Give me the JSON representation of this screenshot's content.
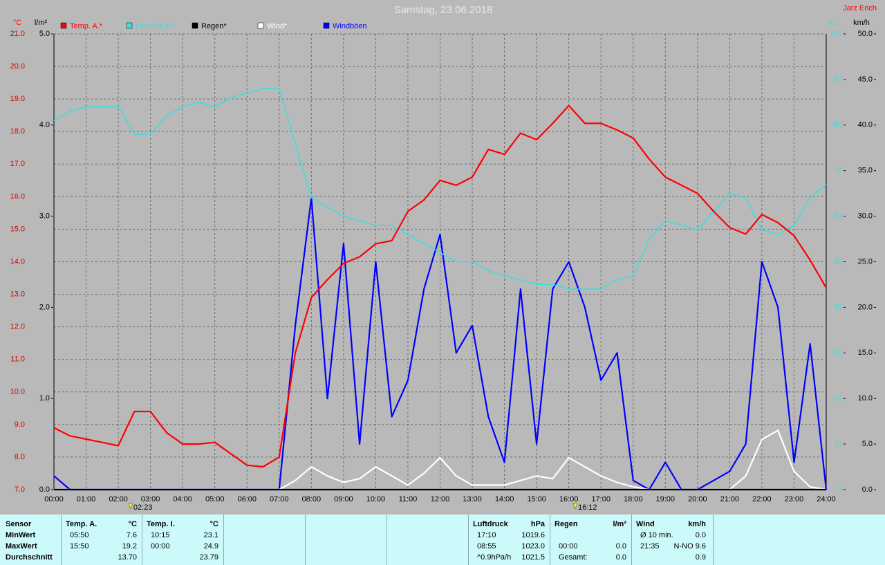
{
  "chart_data": {
    "type": "line",
    "title": "Samstag, 23.06.2018",
    "author": "Jarz Erich",
    "axis_units": {
      "y": "°C",
      "y2": "l/m²",
      "y3": "%",
      "y4": "km/h"
    },
    "x": [
      0,
      0.5,
      1,
      1.5,
      2,
      2.5,
      3,
      3.5,
      4,
      4.5,
      5,
      5.5,
      6,
      6.5,
      7,
      7.5,
      8,
      8.5,
      9,
      9.5,
      10,
      10.5,
      11,
      11.5,
      12,
      12.5,
      13,
      13.5,
      14,
      14.5,
      15,
      15.5,
      16,
      16.5,
      17,
      17.5,
      18,
      18.5,
      19,
      19.5,
      20,
      20.5,
      21,
      21.5,
      22,
      22.5,
      23,
      23.5,
      24
    ],
    "xlim": [
      0,
      24
    ],
    "xticks": [
      {
        "value": 0,
        "label": "00:00"
      },
      {
        "value": 1,
        "label": "01:00"
      },
      {
        "value": 2,
        "label": "02:00"
      },
      {
        "value": 3,
        "label": "03:00"
      },
      {
        "value": 4,
        "label": "04:00"
      },
      {
        "value": 5,
        "label": "05:00"
      },
      {
        "value": 6,
        "label": "06:00"
      },
      {
        "value": 7,
        "label": "07:00"
      },
      {
        "value": 8,
        "label": "08:00"
      },
      {
        "value": 9,
        "label": "09:00"
      },
      {
        "value": 10,
        "label": "10:00"
      },
      {
        "value": 11,
        "label": "11:00"
      },
      {
        "value": 12,
        "label": "12:00"
      },
      {
        "value": 13,
        "label": "13:00"
      },
      {
        "value": 14,
        "label": "14:00"
      },
      {
        "value": 15,
        "label": "15:00"
      },
      {
        "value": 16,
        "label": "16:00"
      },
      {
        "value": 17,
        "label": "17:00"
      },
      {
        "value": 18,
        "label": "18:00"
      },
      {
        "value": 19,
        "label": "19:00"
      },
      {
        "value": 20,
        "label": "20:00"
      },
      {
        "value": 21,
        "label": "21:00"
      },
      {
        "value": 22,
        "label": "22:00"
      },
      {
        "value": 23,
        "label": "23:00"
      },
      {
        "value": 24,
        "label": "24:00"
      }
    ],
    "ylim": [
      7,
      21
    ],
    "yticks": [
      {
        "value": 7,
        "label": "7.0"
      },
      {
        "value": 8,
        "label": "8.0"
      },
      {
        "value": 9,
        "label": "9.0"
      },
      {
        "value": 10,
        "label": "10.0"
      },
      {
        "value": 11,
        "label": "11.0"
      },
      {
        "value": 12,
        "label": "12.0"
      },
      {
        "value": 13,
        "label": "13.0"
      },
      {
        "value": 14,
        "label": "14.0"
      },
      {
        "value": 15,
        "label": "15.0"
      },
      {
        "value": 16,
        "label": "16.0"
      },
      {
        "value": 17,
        "label": "17.0"
      },
      {
        "value": 18,
        "label": "18.0"
      },
      {
        "value": 19,
        "label": "19.0"
      },
      {
        "value": 20,
        "label": "20.0"
      },
      {
        "value": 21,
        "label": "21.0"
      }
    ],
    "y2lim": [
      0,
      5
    ],
    "y2ticks": [
      {
        "value": 0,
        "label": "0.0"
      },
      {
        "value": 1,
        "label": "1.0"
      },
      {
        "value": 2,
        "label": "2.0"
      },
      {
        "value": 3,
        "label": "3.0"
      },
      {
        "value": 4,
        "label": "4.0"
      },
      {
        "value": 5,
        "label": "5.0"
      }
    ],
    "y3lim": [
      0,
      100
    ],
    "y3ticks": [
      0,
      10,
      20,
      30,
      40,
      50,
      60,
      70,
      80,
      90,
      100
    ],
    "y4lim": [
      0,
      50
    ],
    "y4ticks": [
      {
        "value": 0,
        "label": "0.0"
      },
      {
        "value": 5,
        "label": "5.0"
      },
      {
        "value": 10,
        "label": "10.0"
      },
      {
        "value": 15,
        "label": "15.0"
      },
      {
        "value": 20,
        "label": "20.0"
      },
      {
        "value": 25,
        "label": "25.0"
      },
      {
        "value": 30,
        "label": "30.0"
      },
      {
        "value": 35,
        "label": "35.0"
      },
      {
        "value": 40,
        "label": "40.0"
      },
      {
        "value": 45,
        "label": "45.0"
      },
      {
        "value": 50,
        "label": "50.0"
      }
    ],
    "grid": true,
    "series": [
      {
        "name": "Temp. A.*",
        "color": "#ff0000",
        "axis": "y",
        "values": [
          8.9,
          8.65,
          8.55,
          8.45,
          8.35,
          9.4,
          9.4,
          8.75,
          8.4,
          8.4,
          8.45,
          8.1,
          7.75,
          7.7,
          8.0,
          11.2,
          12.9,
          13.45,
          13.95,
          14.15,
          14.55,
          14.65,
          15.55,
          15.9,
          16.5,
          16.35,
          16.6,
          17.45,
          17.3,
          17.95,
          17.75,
          18.25,
          18.8,
          18.25,
          18.25,
          18.05,
          17.8,
          17.15,
          16.6,
          16.35,
          16.1,
          15.55,
          15.05,
          14.85,
          15.45,
          15.2,
          14.8,
          14.05,
          13.2
        ]
      },
      {
        "name": "Feuchte A.*",
        "color": "#33e0e0",
        "axis": "y3",
        "values": [
          81,
          83,
          84,
          84,
          84,
          78,
          78,
          82,
          84,
          85,
          84,
          86,
          87,
          88,
          88,
          76,
          64,
          62,
          60,
          59,
          58,
          58,
          56,
          54,
          52,
          50,
          50,
          48,
          47,
          46,
          45,
          45,
          44,
          44,
          44,
          46,
          47,
          55,
          59,
          58,
          57,
          61,
          65,
          64,
          57,
          56,
          58,
          64,
          67
        ]
      },
      {
        "name": "Regen*",
        "color": "#000000",
        "axis": "y2",
        "values": [
          0,
          0,
          0,
          0,
          0,
          0,
          0,
          0,
          0,
          0,
          0,
          0,
          0,
          0,
          0,
          0,
          0,
          0,
          0,
          0,
          0,
          0,
          0,
          0,
          0,
          0,
          0,
          0,
          0,
          0,
          0,
          0,
          0,
          0,
          0,
          0,
          0,
          0,
          0,
          0,
          0,
          0,
          0,
          0,
          0,
          0,
          0,
          0,
          0
        ]
      },
      {
        "name": "Wind*",
        "color": "#ffffff",
        "axis": "y4",
        "values": [
          0,
          0,
          0,
          0,
          0,
          0,
          0,
          0,
          0,
          0,
          0,
          0,
          0,
          0,
          0,
          1,
          2.5,
          1.5,
          0.8,
          1.2,
          2.5,
          1.5,
          0.5,
          1.8,
          3.5,
          1.5,
          0.5,
          0.5,
          0.5,
          1,
          1.5,
          1.2,
          3.5,
          2.5,
          1.5,
          0.8,
          0.3,
          0,
          0,
          0,
          0,
          0,
          0,
          1.5,
          5.5,
          6.5,
          2,
          0.3,
          0
        ]
      },
      {
        "name": "Windböen",
        "color": "#0000ff",
        "axis": "y4",
        "values": [
          1.5,
          0,
          0,
          0,
          0,
          0,
          0,
          0,
          0,
          0,
          0,
          0,
          0,
          0,
          0,
          18,
          32,
          10,
          27,
          5,
          25,
          8,
          12,
          22,
          28,
          15,
          18,
          8,
          3,
          22,
          5,
          22,
          25,
          20,
          12,
          15,
          1,
          0,
          3,
          0,
          0,
          1,
          2,
          5,
          25,
          20,
          3,
          16,
          0
        ]
      }
    ],
    "annotations": [
      {
        "x": 2.383,
        "label": "02:23"
      },
      {
        "x": 16.2,
        "label": "16:12"
      }
    ]
  },
  "stats_panel": {
    "row_labels": [
      "Sensor",
      "MinWert",
      "MaxWert",
      "Durchschnitt"
    ],
    "groups": [
      {
        "title": "Temp. A.",
        "unit": "°C",
        "rows": [
          {
            "time": "05:50",
            "value": "7.6"
          },
          {
            "time": "15:50",
            "value": "19.2"
          },
          {
            "value": "13.70"
          }
        ]
      },
      {
        "title": "Temp. I.",
        "unit": "°C",
        "rows": [
          {
            "time": "10:15",
            "value": "23.1"
          },
          {
            "time": "00:00",
            "value": "24.9"
          },
          {
            "value": "23.79"
          }
        ]
      },
      {
        "title": "Luftdruck",
        "unit": "hPa",
        "rows": [
          {
            "time": "17:10",
            "value": "1019.6"
          },
          {
            "time": "08:55",
            "value": "1023.0"
          },
          {
            "time": "^0.9hPa/h",
            "value": "1021.5"
          }
        ]
      },
      {
        "title": "Regen",
        "unit": "l/m²",
        "rows": [
          null,
          {
            "time": "00:00",
            "value": "0.0"
          },
          {
            "time": "Gesamt:",
            "value": "0.0"
          }
        ]
      },
      {
        "title": "Wind",
        "unit": "km/h",
        "rows": [
          {
            "time": "Ø 10 min.",
            "value": "0.0"
          },
          {
            "time": "21:35",
            "value": "N-NO 9.6"
          },
          {
            "value": "0.9"
          }
        ]
      }
    ]
  }
}
